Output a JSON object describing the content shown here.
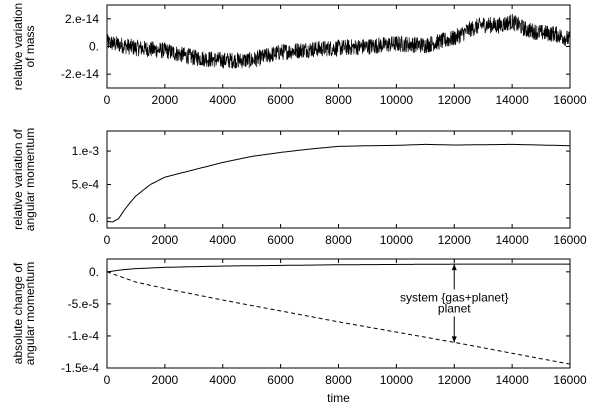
{
  "chart_data": [
    {
      "type": "line",
      "xlabel": "",
      "ylabel": [
        "relative variation",
        "of mass"
      ],
      "xlim": [
        0,
        16000
      ],
      "ylim": [
        -3e-14,
        3e-14
      ],
      "x_ticks": [
        0,
        2000,
        4000,
        6000,
        8000,
        10000,
        12000,
        14000,
        16000
      ],
      "x_tick_labels": [
        "0",
        "2000",
        "4000",
        "6000",
        "8000",
        "10000",
        "12000",
        "14000",
        "16000"
      ],
      "y_ticks": [
        2e-14,
        0,
        -2e-14
      ],
      "y_tick_labels": [
        "2.e-14",
        "0.",
        "-2.e-14"
      ],
      "grid": false,
      "series": [
        {
          "style": "noisy",
          "color": "#000000",
          "x": [
            0,
            1000,
            2000,
            3000,
            4000,
            5000,
            6000,
            7000,
            8000,
            9000,
            10000,
            11000,
            12000,
            12500,
            13000,
            13500,
            14000,
            14500,
            15000,
            15500,
            16000
          ],
          "values": [
            3e-15,
            -1e-15,
            -3e-15,
            -8e-15,
            -1e-14,
            -1e-14,
            -4e-15,
            -2e-15,
            -1e-15,
            0.0,
            2e-15,
            1e-15,
            6e-15,
            1.2e-14,
            1.6e-14,
            1.5e-14,
            1.8e-14,
            1.2e-14,
            1e-14,
            9e-15,
            5e-15
          ],
          "noise_amplitude": 6e-15
        }
      ]
    },
    {
      "type": "line",
      "xlabel": "",
      "ylabel": [
        "relative variation of",
        "angular momentum"
      ],
      "xlim": [
        0,
        16000
      ],
      "ylim": [
        -0.00015,
        0.0013
      ],
      "x_ticks": [
        0,
        2000,
        4000,
        6000,
        8000,
        10000,
        12000,
        14000,
        16000
      ],
      "x_tick_labels": [
        "0",
        "2000",
        "4000",
        "6000",
        "8000",
        "10000",
        "12000",
        "14000",
        "16000"
      ],
      "y_ticks": [
        0.001,
        0.0005,
        0
      ],
      "y_tick_labels": [
        "1.e-3",
        "5.e-4",
        "0."
      ],
      "grid": false,
      "series": [
        {
          "style": "solid",
          "color": "#000000",
          "x": [
            0,
            200,
            400,
            600,
            800,
            1000,
            1500,
            2000,
            3000,
            4000,
            5000,
            6000,
            7000,
            8000,
            9000,
            10000,
            11000,
            12000,
            13000,
            14000,
            15000,
            16000
          ],
          "values": [
            -5e-05,
            -6e-05,
            -1e-05,
            0.00012,
            0.00023,
            0.00033,
            0.0005,
            0.00061,
            0.00072,
            0.00083,
            0.00092,
            0.00098,
            0.00103,
            0.00107,
            0.00108,
            0.001085,
            0.0011,
            0.00109,
            0.001095,
            0.0011,
            0.00109,
            0.00108
          ]
        }
      ]
    },
    {
      "type": "line",
      "xlabel": "time",
      "ylabel": [
        "absolute change of",
        "angular momentum"
      ],
      "xlim": [
        0,
        16000
      ],
      "ylim": [
        -0.00015,
        2e-05
      ],
      "x_ticks": [
        0,
        2000,
        4000,
        6000,
        8000,
        10000,
        12000,
        14000,
        16000
      ],
      "x_tick_labels": [
        "0",
        "2000",
        "4000",
        "6000",
        "8000",
        "10000",
        "12000",
        "14000",
        "16000"
      ],
      "y_ticks": [
        0,
        -5e-05,
        -0.0001,
        -0.00015
      ],
      "y_tick_labels": [
        "0.",
        "-5.e-5",
        "-1.e-4",
        "-1.5e-4"
      ],
      "grid": false,
      "series": [
        {
          "name": "system {gas+planet}",
          "style": "solid",
          "color": "#000000",
          "x": [
            0,
            500,
            1000,
            2000,
            3000,
            4000,
            6000,
            8000,
            10000,
            12000,
            14000,
            16000
          ],
          "values": [
            0,
            3e-06,
            5e-06,
            7e-06,
            8e-06,
            9e-06,
            1e-05,
            1.1e-05,
            1.15e-05,
            1.2e-05,
            1.2e-05,
            1.2e-05
          ]
        },
        {
          "name": "planet",
          "style": "dashed",
          "color": "#000000",
          "x": [
            0,
            500,
            1000,
            1500,
            2000,
            3000,
            4000,
            6000,
            8000,
            10000,
            12000,
            14000,
            16000
          ],
          "values": [
            0,
            -8e-06,
            -1.6e-05,
            -2.1e-05,
            -2.6e-05,
            -3.5e-05,
            -4.4e-05,
            -6.1e-05,
            -7.8e-05,
            -9.4e-05,
            -0.00011,
            -0.000127,
            -0.000144
          ]
        }
      ],
      "annotations": [
        {
          "text": "system {gas+planet}",
          "x": 12000,
          "y": -4e-05,
          "arrow_to": [
            12000,
            1.2e-05
          ]
        },
        {
          "text": "planet",
          "x": 12000,
          "y": -5.7e-05,
          "arrow_to": [
            12000,
            -0.00011
          ]
        }
      ]
    }
  ]
}
